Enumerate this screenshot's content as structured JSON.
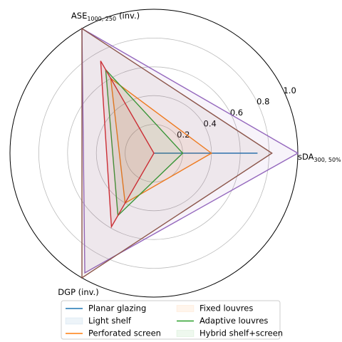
{
  "chart_data": {
    "type": "radar",
    "axes": [
      {
        "label": "sDA",
        "sub": "300, 50%",
        "suffix": null
      },
      {
        "label": "ASE",
        "sub": "1000, 250",
        "suffix": "(inv.)"
      },
      {
        "label": "DGP (inv.)",
        "sub": null,
        "suffix": null
      }
    ],
    "rlim": [
      0,
      1.0
    ],
    "rticks": [
      0.2,
      0.4,
      0.6,
      0.8,
      {
        "value": 1.0,
        "label": "1.0"
      }
    ],
    "grid": true,
    "series": [
      {
        "name": "Planar glazing",
        "color": "#1f77b4",
        "values": [
          0.72,
          0,
          0
        ],
        "legend_style": "line",
        "legend_color": "#1f77b4"
      },
      {
        "name": "Light shelf",
        "color": "#ff7f0e",
        "values": [
          0.4,
          0.6,
          0.4
        ],
        "legend_style": "patch",
        "legend_color": "#1f77b4"
      },
      {
        "name": "Perforated screen",
        "color": "#2ca02c",
        "values": [
          0.2,
          0.67,
          0.5
        ],
        "legend_style": "line",
        "legend_color": "#ff7f0e"
      },
      {
        "name": "Fixed louvres",
        "color": "#d62728",
        "values": [
          0,
          0.74,
          0.59
        ],
        "legend_style": "patch",
        "legend_color": "#ff7f0e"
      },
      {
        "name": "Adaptive louvres",
        "color": "#9467bd",
        "values": [
          1.0,
          1.0,
          0.96
        ],
        "legend_style": "line",
        "legend_color": "#2ca02c"
      },
      {
        "name": "Hybrid shelf+screen",
        "color": "#8c564b",
        "values": [
          0.82,
          1.0,
          1.0
        ],
        "legend_style": "patch",
        "legend_color": "#2ca02c"
      }
    ]
  }
}
